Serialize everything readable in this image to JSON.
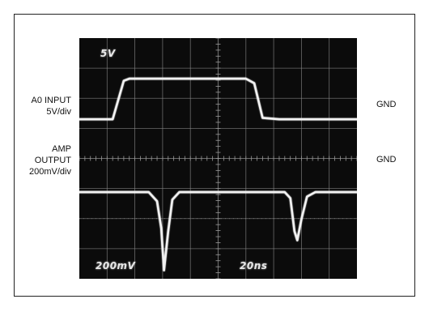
{
  "chart_data": {
    "type": "line",
    "title": "",
    "xlabel": "",
    "ylabel": "",
    "grid": true,
    "divisions": {
      "x": 10,
      "y": 8
    },
    "time_per_div": "20ns",
    "series": [
      {
        "name": "A0 INPUT",
        "scale": "5V/div",
        "ground_label": "GND",
        "color": "#f2f2f2",
        "points": [
          [
            0.0,
            0.0
          ],
          [
            1.2,
            0.0
          ],
          [
            1.6,
            1.28
          ],
          [
            1.8,
            1.35
          ],
          [
            6.0,
            1.35
          ],
          [
            6.3,
            1.2
          ],
          [
            6.6,
            0.05
          ],
          [
            7.2,
            0.0
          ],
          [
            10.0,
            0.0
          ]
        ]
      },
      {
        "name": "AMP OUTPUT",
        "scale": "200mV/div",
        "ground_label": "GND",
        "color": "#f2f2f2",
        "points": [
          [
            0.0,
            0.0
          ],
          [
            2.5,
            0.0
          ],
          [
            2.8,
            -0.3
          ],
          [
            2.95,
            -1.2
          ],
          [
            3.05,
            -2.6
          ],
          [
            3.2,
            -1.3
          ],
          [
            3.35,
            -0.25
          ],
          [
            3.6,
            0.0
          ],
          [
            7.4,
            0.0
          ],
          [
            7.6,
            -0.2
          ],
          [
            7.75,
            -1.3
          ],
          [
            7.85,
            -1.6
          ],
          [
            8.0,
            -0.9
          ],
          [
            8.2,
            -0.15
          ],
          [
            8.5,
            0.0
          ],
          [
            10.0,
            0.0
          ]
        ]
      }
    ]
  },
  "labels": {
    "input_name": "A0 INPUT",
    "input_scale": "5V/div",
    "amp_line1": "AMP",
    "amp_line2": "OUTPUT",
    "amp_scale": "200mV/div",
    "gnd_top": "GND",
    "gnd_bottom": "GND"
  },
  "scope_readouts": {
    "top_left": "5V",
    "bottom_left": "200mV",
    "bottom_right": "20ns"
  }
}
